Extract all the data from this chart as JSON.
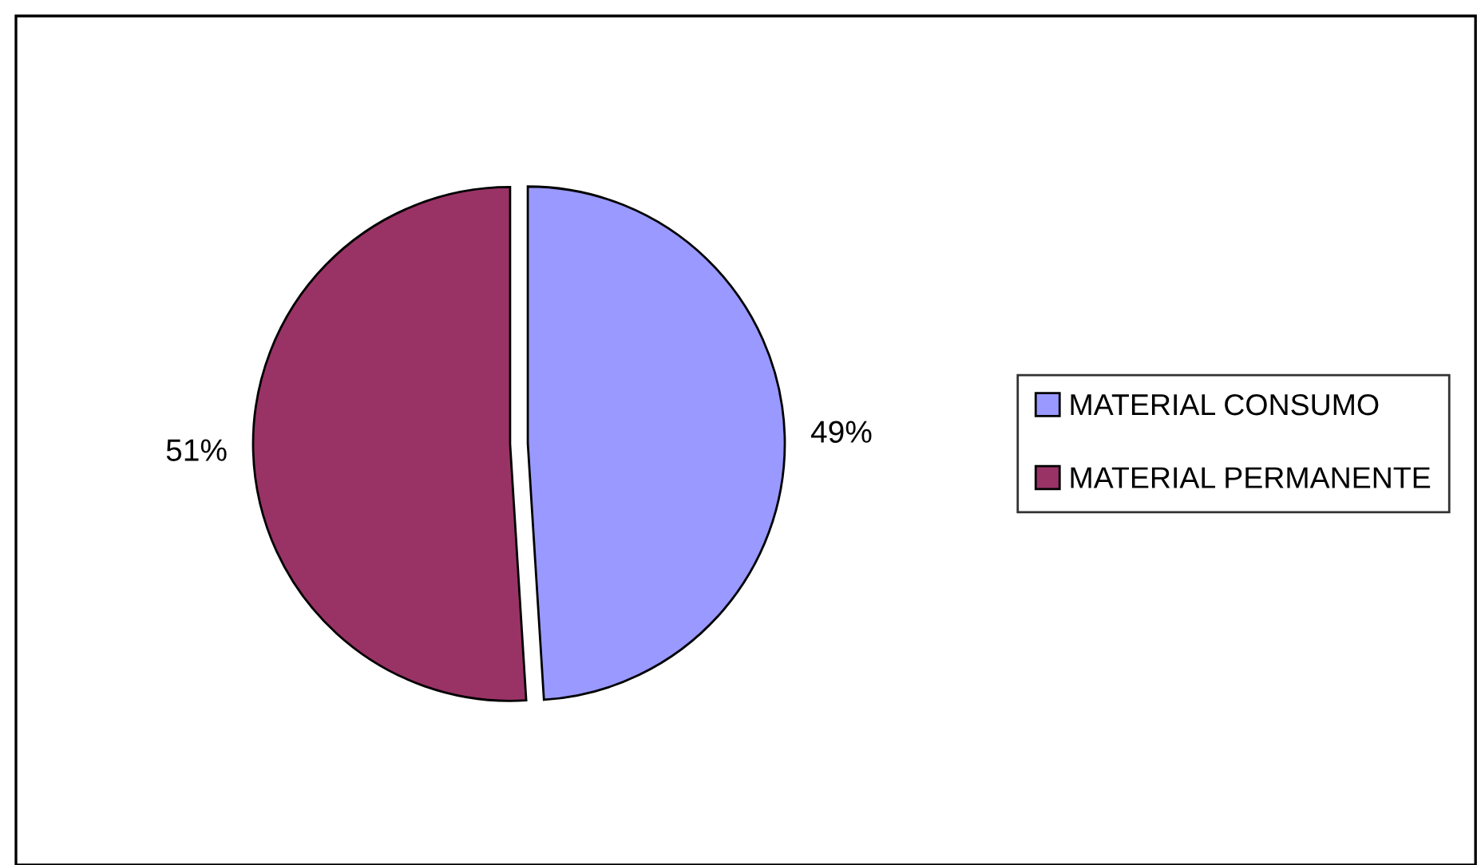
{
  "chart_data": {
    "type": "pie",
    "categories": [
      "MATERIAL CONSUMO",
      "MATERIAL PERMANENTE"
    ],
    "values": [
      49,
      51
    ],
    "colors": [
      "#9999ff",
      "#993366"
    ],
    "value_labels": [
      "49%",
      "51%"
    ],
    "legend": "right"
  }
}
